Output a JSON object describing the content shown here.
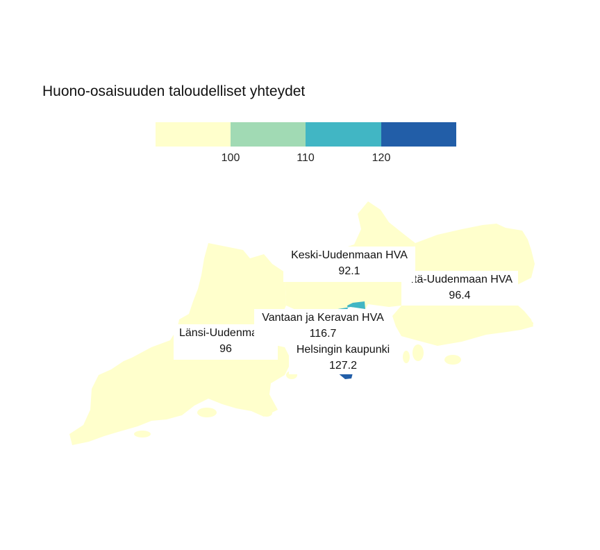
{
  "title": "Huono-osaisuuden taloudelliset yhteydet",
  "legend": {
    "breaks": [
      "100",
      "110",
      "120"
    ],
    "colors": [
      "#ffffcc",
      "#a1dab4",
      "#41b6c4",
      "#225ea8"
    ]
  },
  "regions": {
    "keski": {
      "name": "Keski-Uudenmaan HVA",
      "value": "92.1",
      "color": "#ffffcc"
    },
    "ita": {
      "name": "Itä-Uudenmaan HVA",
      "value": "96.4",
      "color": "#ffffcc"
    },
    "lansi": {
      "name": "Länsi-Uudenmaan HVA",
      "value": "96",
      "color": "#ffffcc"
    },
    "vantaa": {
      "name": "Vantaan ja Keravan HVA",
      "value": "116.7",
      "color": "#41b6c4"
    },
    "helsinki": {
      "name": "Helsingin kaupunki",
      "value": "127.2",
      "color": "#225ea8"
    }
  }
}
